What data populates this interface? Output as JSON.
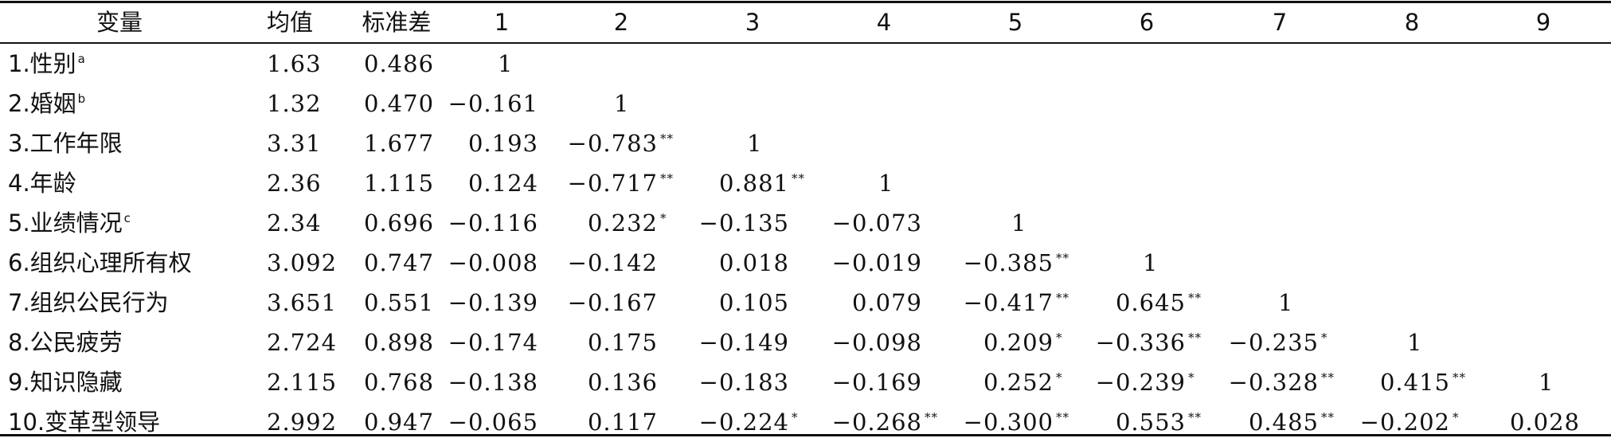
{
  "headers": [
    "变量",
    "均值",
    "标准差",
    "1",
    "2",
    "3",
    "4",
    "5",
    "6",
    "7",
    "8",
    "9"
  ],
  "rows": [
    {
      "label": "1.性别",
      "label_sup": "a",
      "mean": "1.63",
      "sd": "0.486",
      "cells": [
        {
          "v": "1",
          "s": ""
        }
      ]
    },
    {
      "label": "2.婚姻",
      "label_sup": "b",
      "mean": "1.32",
      "sd": "0.470",
      "cells": [
        {
          "v": "−0.161",
          "s": ""
        },
        {
          "v": "1",
          "s": ""
        }
      ]
    },
    {
      "label": "3.工作年限",
      "label_sup": "",
      "mean": "3.31",
      "sd": "1.677",
      "cells": [
        {
          "v": "0.193",
          "s": ""
        },
        {
          "v": "−0.783",
          "s": "**"
        },
        {
          "v": "1",
          "s": ""
        }
      ]
    },
    {
      "label": "4.年龄",
      "label_sup": "",
      "mean": "2.36",
      "sd": "1.115",
      "cells": [
        {
          "v": "0.124",
          "s": ""
        },
        {
          "v": "−0.717",
          "s": "**"
        },
        {
          "v": "0.881",
          "s": "**"
        },
        {
          "v": "1",
          "s": ""
        }
      ]
    },
    {
      "label": "5.业绩情况",
      "label_sup": "c",
      "mean": "2.34",
      "sd": "0.696",
      "cells": [
        {
          "v": "−0.116",
          "s": ""
        },
        {
          "v": "0.232",
          "s": "*"
        },
        {
          "v": "−0.135",
          "s": ""
        },
        {
          "v": "−0.073",
          "s": ""
        },
        {
          "v": "1",
          "s": ""
        }
      ]
    },
    {
      "label": "6.组织心理所有权",
      "label_sup": "",
      "mean": "3.092",
      "sd": "0.747",
      "cells": [
        {
          "v": "−0.008",
          "s": ""
        },
        {
          "v": "−0.142",
          "s": ""
        },
        {
          "v": "0.018",
          "s": ""
        },
        {
          "v": "−0.019",
          "s": ""
        },
        {
          "v": "−0.385",
          "s": "**"
        },
        {
          "v": "1",
          "s": ""
        }
      ]
    },
    {
      "label": "7.组织公民行为",
      "label_sup": "",
      "mean": "3.651",
      "sd": "0.551",
      "cells": [
        {
          "v": "−0.139",
          "s": ""
        },
        {
          "v": "−0.167",
          "s": ""
        },
        {
          "v": "0.105",
          "s": ""
        },
        {
          "v": "0.079",
          "s": ""
        },
        {
          "v": "−0.417",
          "s": "**"
        },
        {
          "v": "0.645",
          "s": "**"
        },
        {
          "v": "1",
          "s": ""
        }
      ]
    },
    {
      "label": "8.公民疲劳",
      "label_sup": "",
      "mean": "2.724",
      "sd": "0.898",
      "cells": [
        {
          "v": "−0.174",
          "s": ""
        },
        {
          "v": "0.175",
          "s": ""
        },
        {
          "v": "−0.149",
          "s": ""
        },
        {
          "v": "−0.098",
          "s": ""
        },
        {
          "v": "0.209",
          "s": "*"
        },
        {
          "v": "−0.336",
          "s": "**"
        },
        {
          "v": "−0.235",
          "s": "*"
        },
        {
          "v": "1",
          "s": ""
        }
      ]
    },
    {
      "label": "9.知识隐藏",
      "label_sup": "",
      "mean": "2.115",
      "sd": "0.768",
      "cells": [
        {
          "v": "−0.138",
          "s": ""
        },
        {
          "v": "0.136",
          "s": ""
        },
        {
          "v": "−0.183",
          "s": ""
        },
        {
          "v": "−0.169",
          "s": ""
        },
        {
          "v": "0.252",
          "s": "*"
        },
        {
          "v": "−0.239",
          "s": "*"
        },
        {
          "v": "−0.328",
          "s": "**"
        },
        {
          "v": "0.415",
          "s": "**"
        },
        {
          "v": "1",
          "s": ""
        }
      ]
    },
    {
      "label": "10.变革型领导",
      "label_sup": "",
      "mean": "2.992",
      "sd": "0.947",
      "cells": [
        {
          "v": "−0.065",
          "s": ""
        },
        {
          "v": "0.117",
          "s": ""
        },
        {
          "v": "−0.224",
          "s": "*"
        },
        {
          "v": "−0.268",
          "s": "**"
        },
        {
          "v": "−0.300",
          "s": "**"
        },
        {
          "v": "0.553",
          "s": "**"
        },
        {
          "v": "0.485",
          "s": "**"
        },
        {
          "v": "−0.202",
          "s": "*"
        },
        {
          "v": "0.028",
          "s": ""
        }
      ]
    }
  ]
}
